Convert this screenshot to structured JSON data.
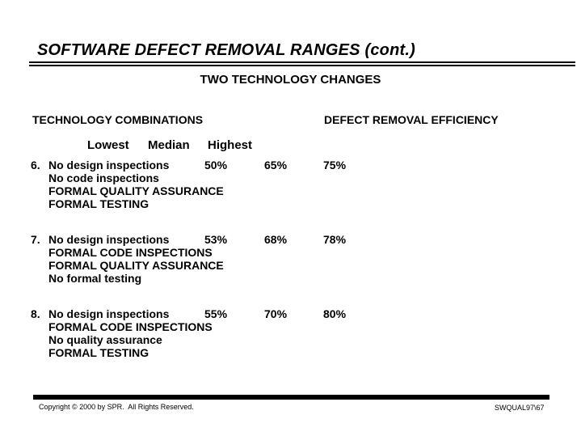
{
  "slide": {
    "title": "SOFTWARE DEFECT REMOVAL RANGES (cont.)",
    "subtitle": "TWO TECHNOLOGY CHANGES",
    "left_header": "TECHNOLOGY COMBINATIONS",
    "right_header": "DEFECT REMOVAL EFFICIENCY",
    "range_headers": {
      "lowest": "Lowest",
      "median": "Median",
      "highest": "Highest"
    },
    "rows": [
      {
        "num": "6.",
        "lines": [
          "No design inspections",
          "No code inspections",
          "FORMAL QUALITY ASSURANCE",
          "FORMAL TESTING"
        ],
        "lowest": "50%",
        "median": "65%",
        "highest": "75%"
      },
      {
        "num": "7.",
        "lines": [
          "No design inspections",
          "FORMAL CODE INSPECTIONS",
          "FORMAL QUALITY ASSURANCE",
          "No formal testing"
        ],
        "lowest": "53%",
        "median": "68%",
        "highest": "78%"
      },
      {
        "num": "8.",
        "lines": [
          "No design inspections",
          "FORMAL CODE INSPECTIONS",
          "No quality assurance",
          "FORMAL TESTING"
        ],
        "lowest": "55%",
        "median": "70%",
        "highest": "80%"
      }
    ],
    "footer_left": "Copyright © 2000 by SPR.  All Rights Reserved.",
    "footer_right": "SWQUAL97\\67"
  }
}
